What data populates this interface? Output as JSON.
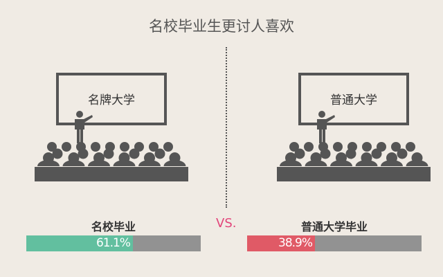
{
  "title": "名校毕业生更讨人喜欢",
  "vs_label": "VS.",
  "colors": {
    "background": "#f0ebe4",
    "famous": "#62bf9f",
    "ordinary": "#e05a66",
    "bar_track": "#929292",
    "icon": "#555555",
    "vs": "#e2457a"
  },
  "chart_data": {
    "type": "bar",
    "title": "名校毕业生更讨人喜欢",
    "categories": [
      "名校毕业",
      "普通大学毕业"
    ],
    "values": [
      61.1,
      38.9
    ],
    "value_labels": [
      "61.1%",
      "38.9%"
    ],
    "ylim": [
      0,
      100
    ]
  },
  "scenes": [
    {
      "screen_text": "名牌大学",
      "icon": "lecture-hall-icon"
    },
    {
      "screen_text": "普通大学",
      "icon": "lecture-hall-icon"
    }
  ]
}
